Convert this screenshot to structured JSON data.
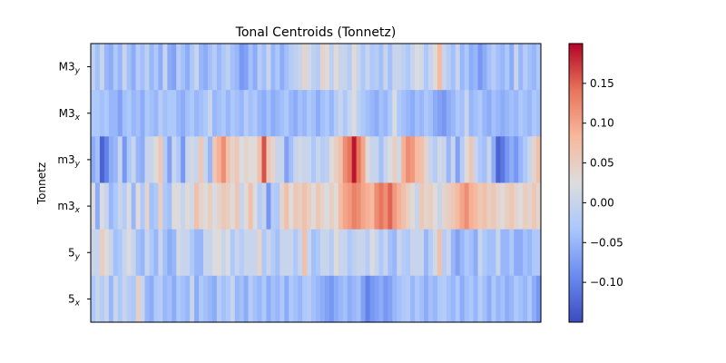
{
  "chart_data": {
    "type": "heatmap",
    "title": "Tonal Centroids (Tonnetz)",
    "xlabel": "",
    "ylabel": "Tonnetz",
    "rows": [
      {
        "base": "M3",
        "sub": "y"
      },
      {
        "base": "M3",
        "sub": "x"
      },
      {
        "base": "m3",
        "sub": "y"
      },
      {
        "base": "m3",
        "sub": "x"
      },
      {
        "base": "5",
        "sub": "y"
      },
      {
        "base": "5",
        "sub": "x"
      }
    ],
    "n_frames": 100,
    "color_range": [
      -0.15,
      0.2
    ],
    "colormap": "coolwarm",
    "colormap_stops": [
      "#3b4cc0",
      "#6a8bef",
      "#aac7fd",
      "#dddddd",
      "#f7b89c",
      "#e7745b",
      "#b40426"
    ],
    "colorbar_ticks": [
      0.15,
      0.1,
      0.05,
      0.0,
      -0.05,
      -0.1
    ],
    "colorbar_tick_labels": [
      "0.15",
      "0.10",
      "0.05",
      "0.00",
      "−0.05",
      "−0.10"
    ],
    "matrix": [
      [
        -0.01,
        -0.04,
        0.0,
        -0.05,
        -0.06,
        -0.03,
        -0.05,
        0.0,
        -0.04,
        -0.06,
        -0.02,
        -0.04,
        -0.01,
        -0.05,
        -0.03,
        -0.06,
        0.0,
        -0.06,
        -0.07,
        -0.02,
        -0.04,
        -0.06,
        -0.03,
        0.0,
        -0.05,
        -0.06,
        -0.04,
        -0.02,
        -0.05,
        -0.03,
        -0.01,
        -0.04,
        -0.05,
        -0.08,
        -0.07,
        -0.04,
        -0.06,
        -0.02,
        -0.04,
        0.0,
        -0.05,
        -0.03,
        -0.06,
        -0.04,
        -0.02,
        -0.01,
        0.0,
        0.04,
        0.01,
        -0.01,
        -0.02,
        0.04,
        0.03,
        -0.01,
        0.03,
        0.0,
        0.0,
        -0.02,
        0.03,
        0.0,
        -0.03,
        0.0,
        -0.03,
        -0.02,
        -0.04,
        0.0,
        -0.04,
        0.0,
        0.0,
        -0.01,
        -0.03,
        0.0,
        0.02,
        0.01,
        -0.03,
        0.0,
        0.03,
        0.08,
        0.0,
        -0.02,
        -0.04,
        0.0,
        -0.05,
        -0.03,
        -0.06,
        -0.05,
        -0.08,
        -0.06,
        -0.04,
        -0.02,
        -0.04,
        -0.05,
        -0.03,
        -0.06,
        0.0,
        -0.05,
        -0.02,
        -0.04,
        -0.05,
        -0.03
      ],
      [
        -0.03,
        -0.03,
        -0.04,
        -0.03,
        -0.05,
        -0.05,
        -0.07,
        -0.04,
        -0.03,
        -0.05,
        -0.04,
        -0.06,
        -0.03,
        -0.04,
        -0.05,
        -0.02,
        -0.04,
        -0.03,
        -0.03,
        -0.05,
        -0.06,
        -0.04,
        -0.03,
        -0.05,
        -0.04,
        -0.03,
        0.0,
        -0.05,
        -0.04,
        -0.03,
        -0.05,
        -0.03,
        -0.04,
        -0.05,
        -0.02,
        -0.04,
        -0.03,
        -0.05,
        -0.06,
        -0.04,
        -0.06,
        -0.05,
        -0.04,
        -0.03,
        -0.05,
        -0.06,
        -0.04,
        -0.05,
        -0.03,
        -0.04,
        -0.06,
        -0.04,
        -0.03,
        -0.05,
        -0.02,
        0.0,
        -0.03,
        0.0,
        0.02,
        -0.01,
        -0.03,
        -0.04,
        -0.05,
        -0.06,
        -0.04,
        -0.05,
        -0.03,
        0.02,
        -0.03,
        -0.04,
        -0.05,
        -0.06,
        -0.04,
        -0.05,
        -0.03,
        -0.04,
        -0.06,
        -0.07,
        -0.08,
        -0.06,
        -0.05,
        -0.03,
        -0.04,
        0.0,
        -0.05,
        -0.04,
        -0.03,
        -0.05,
        -0.06,
        -0.04,
        -0.05,
        -0.06,
        -0.05,
        -0.04,
        -0.05,
        -0.03,
        -0.04,
        -0.05,
        -0.03,
        -0.04
      ],
      [
        -0.06,
        -0.04,
        -0.13,
        -0.1,
        -0.06,
        -0.05,
        0.0,
        -0.08,
        -0.03,
        0.0,
        -0.05,
        -0.06,
        0.0,
        0.0,
        0.03,
        0.06,
        -0.02,
        -0.07,
        0.0,
        -0.03,
        -0.08,
        0.0,
        0.01,
        0.0,
        0.06,
        0.0,
        -0.05,
        0.06,
        0.09,
        0.12,
        0.07,
        0.04,
        0.06,
        0.02,
        0.04,
        0.03,
        0.03,
        0.07,
        0.16,
        0.06,
        0.04,
        0.0,
        0.0,
        -0.07,
        -0.04,
        0.0,
        0.01,
        0.0,
        0.0,
        -0.03,
        0.0,
        -0.02,
        -0.01,
        0.03,
        0.05,
        0.07,
        0.12,
        0.14,
        0.19,
        0.14,
        0.1,
        0.03,
        0.0,
        0.0,
        -0.04,
        0.0,
        0.02,
        0.05,
        0.01,
        0.09,
        0.12,
        0.11,
        0.08,
        0.07,
        0.04,
        0.0,
        -0.02,
        0.01,
        0.0,
        -0.05,
        0.0,
        -0.07,
        -0.02,
        0.03,
        0.06,
        0.0,
        -0.03,
        -0.04,
        0.0,
        -0.06,
        -0.13,
        -0.11,
        -0.08,
        -0.06,
        -0.08,
        -0.05,
        -0.03,
        0.0,
        0.04,
        0.07
      ],
      [
        0.02,
        -0.06,
        0.02,
        0.0,
        -0.05,
        -0.03,
        0.0,
        -0.02,
        0.02,
        -0.05,
        0.03,
        -0.03,
        0.04,
        -0.04,
        -0.03,
        0.05,
        -0.03,
        -0.04,
        0.03,
        0.02,
        0.0,
        0.03,
        0.01,
        0.07,
        0.04,
        0.03,
        0.05,
        0.02,
        0.04,
        0.06,
        0.05,
        0.03,
        0.06,
        0.0,
        0.03,
        0.07,
        0.02,
        -0.02,
        0.0,
        -0.08,
        -0.02,
        -0.03,
        0.04,
        0.07,
        0.03,
        0.06,
        0.05,
        0.07,
        0.05,
        0.03,
        0.06,
        0.04,
        0.02,
        0.05,
        0.03,
        0.08,
        0.1,
        0.11,
        0.13,
        0.12,
        0.1,
        0.09,
        0.08,
        0.12,
        0.14,
        0.12,
        0.15,
        0.11,
        0.09,
        0.07,
        0.05,
        0.03,
        0.0,
        0.06,
        0.04,
        0.05,
        0.03,
        0.0,
        0.04,
        0.05,
        0.06,
        0.08,
        0.1,
        0.12,
        0.09,
        0.08,
        0.06,
        0.07,
        0.05,
        0.06,
        0.04,
        0.03,
        0.05,
        0.06,
        0.04,
        0.03,
        0.05,
        0.04,
        0.06,
        0.04
      ],
      [
        0.0,
        0.0,
        0.05,
        0.03,
        0.0,
        -0.04,
        -0.03,
        0.0,
        0.02,
        0.0,
        -0.04,
        -0.05,
        0.0,
        -0.03,
        -0.05,
        0.0,
        -0.04,
        -0.06,
        -0.05,
        0.01,
        0.0,
        0.0,
        -0.03,
        -0.05,
        -0.05,
        0.0,
        0.0,
        0.02,
        0.03,
        0.0,
        0.02,
        -0.03,
        0.0,
        -0.02,
        0.0,
        0.0,
        0.0,
        0.04,
        -0.03,
        0.0,
        -0.02,
        -0.04,
        0.0,
        0.0,
        0.0,
        -0.03,
        0.0,
        0.07,
        0.0,
        -0.04,
        -0.03,
        0.0,
        0.0,
        -0.02,
        0.03,
        0.0,
        0.0,
        -0.03,
        -0.01,
        0.0,
        0.0,
        -0.02,
        0.02,
        0.0,
        -0.03,
        0.0,
        -0.04,
        -0.05,
        0.0,
        -0.02,
        -0.03,
        0.0,
        0.0,
        0.0,
        -0.05,
        -0.02,
        0.01,
        0.07,
        -0.02,
        0.0,
        -0.05,
        -0.07,
        -0.05,
        -0.03,
        -0.04,
        -0.06,
        0.0,
        -0.03,
        -0.04,
        -0.04,
        0.0,
        -0.05,
        -0.05,
        -0.03,
        -0.06,
        -0.06,
        -0.04,
        -0.05,
        -0.03,
        -0.03
      ],
      [
        -0.03,
        0.0,
        -0.02,
        0.0,
        -0.05,
        0.0,
        -0.03,
        0.0,
        -0.02,
        -0.03,
        0.05,
        0.0,
        -0.05,
        -0.06,
        -0.03,
        -0.02,
        -0.05,
        -0.04,
        -0.06,
        -0.03,
        -0.04,
        -0.05,
        0.0,
        -0.06,
        -0.03,
        -0.04,
        -0.05,
        -0.06,
        -0.02,
        -0.04,
        -0.03,
        0.0,
        -0.05,
        -0.04,
        -0.06,
        -0.02,
        -0.04,
        -0.05,
        -0.03,
        -0.06,
        -0.04,
        -0.05,
        -0.03,
        -0.06,
        -0.03,
        -0.04,
        -0.05,
        -0.03,
        -0.02,
        -0.04,
        -0.05,
        -0.06,
        -0.07,
        -0.08,
        -0.06,
        -0.05,
        -0.04,
        -0.06,
        -0.05,
        -0.04,
        -0.07,
        -0.1,
        -0.08,
        -0.07,
        -0.06,
        -0.08,
        -0.07,
        -0.05,
        -0.04,
        -0.03,
        -0.02,
        -0.05,
        -0.03,
        -0.04,
        -0.06,
        -0.04,
        -0.05,
        -0.03,
        -0.02,
        -0.04,
        -0.05,
        -0.03,
        -0.06,
        -0.04,
        -0.03,
        -0.05,
        -0.02,
        -0.04,
        -0.06,
        -0.03,
        -0.05,
        -0.04,
        -0.06,
        -0.05,
        -0.03,
        -0.04,
        -0.05,
        -0.03,
        -0.06,
        -0.08
      ]
    ]
  }
}
